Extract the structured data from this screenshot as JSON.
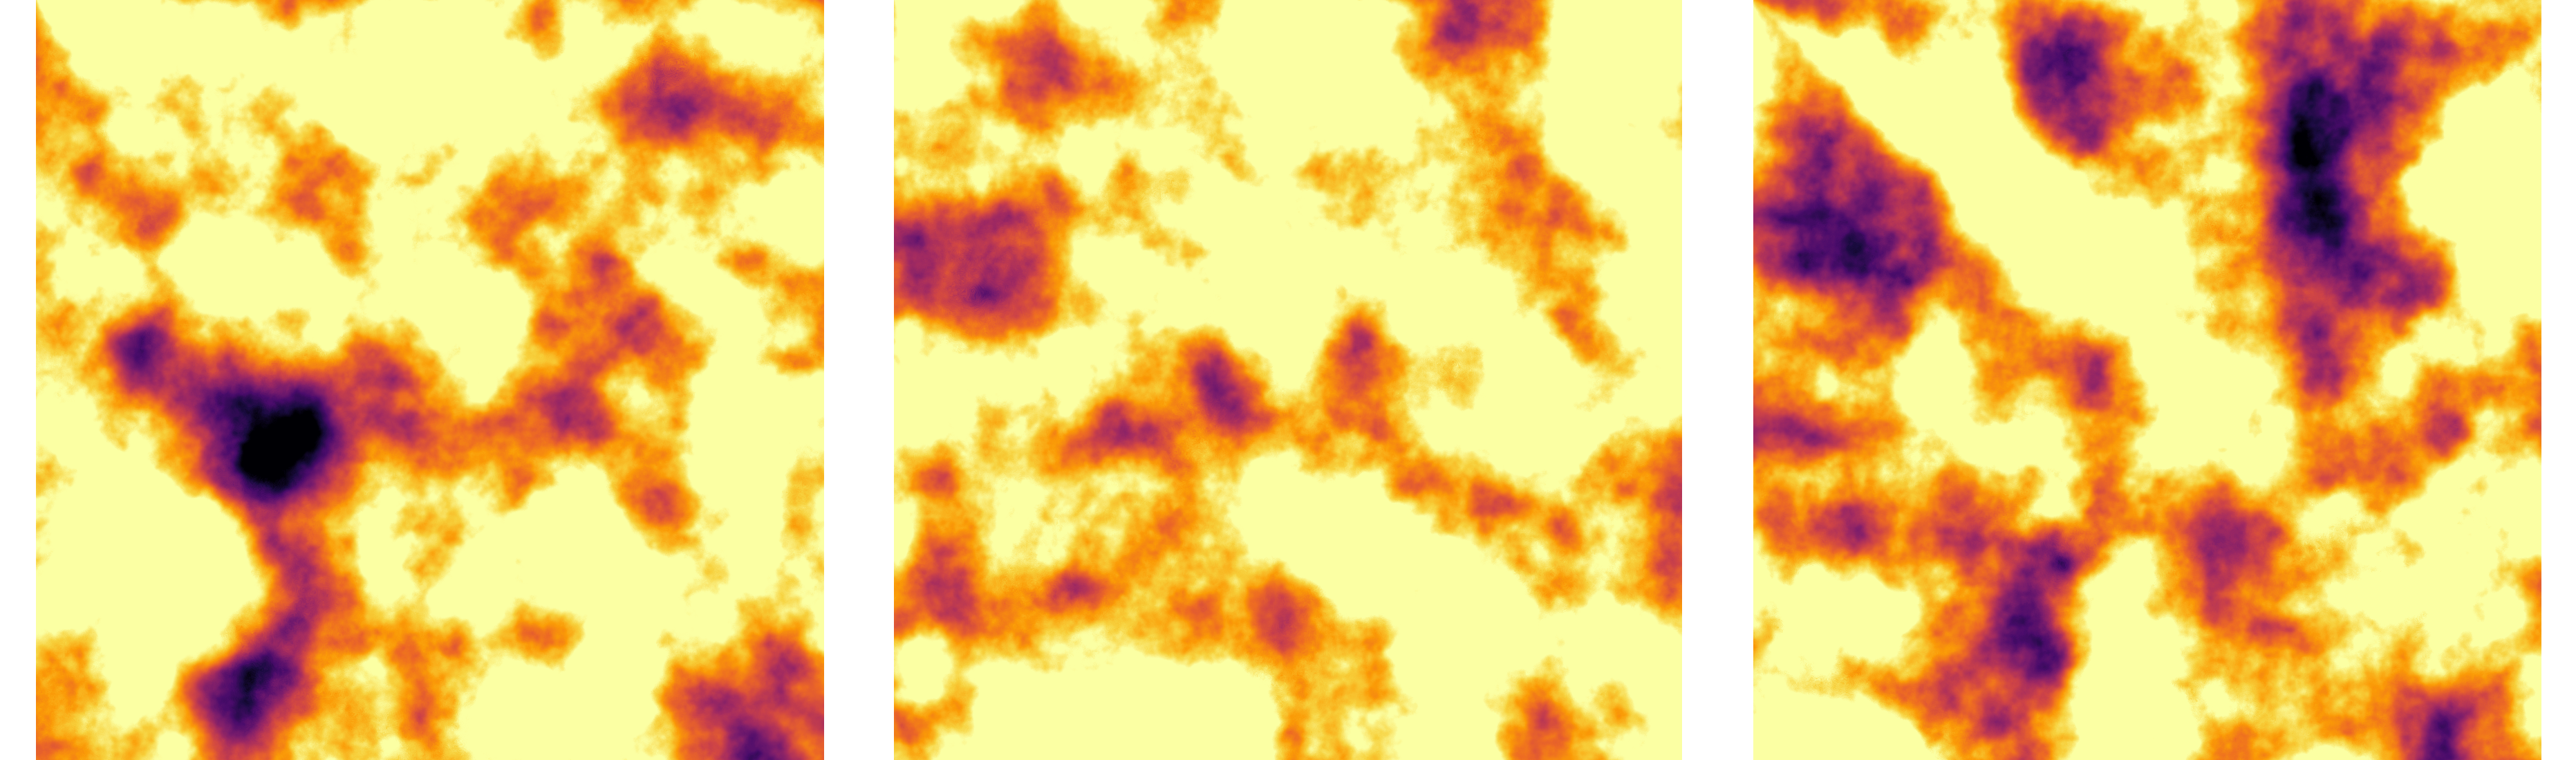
{
  "figure": {
    "panel_count": 3,
    "colormap": "inferno",
    "background": "#ffffff",
    "palette": [
      "#000004",
      "#1b0c41",
      "#4a0c6b",
      "#781c6d",
      "#a52c60",
      "#cf4446",
      "#ed6925",
      "#fb9b06",
      "#f7d13d",
      "#fcffa4"
    ]
  },
  "panels": [
    {
      "id": "panel-1",
      "seed": 7,
      "hot_spot": "lower-left",
      "dark_spot": "left-edge"
    },
    {
      "id": "panel-2",
      "seed": 19,
      "hot_spot": "upper-center",
      "dark_spot": "lower-center"
    },
    {
      "id": "panel-3",
      "seed": 42,
      "hot_spot": "top-right",
      "dark_spot": "upper-center"
    }
  ]
}
